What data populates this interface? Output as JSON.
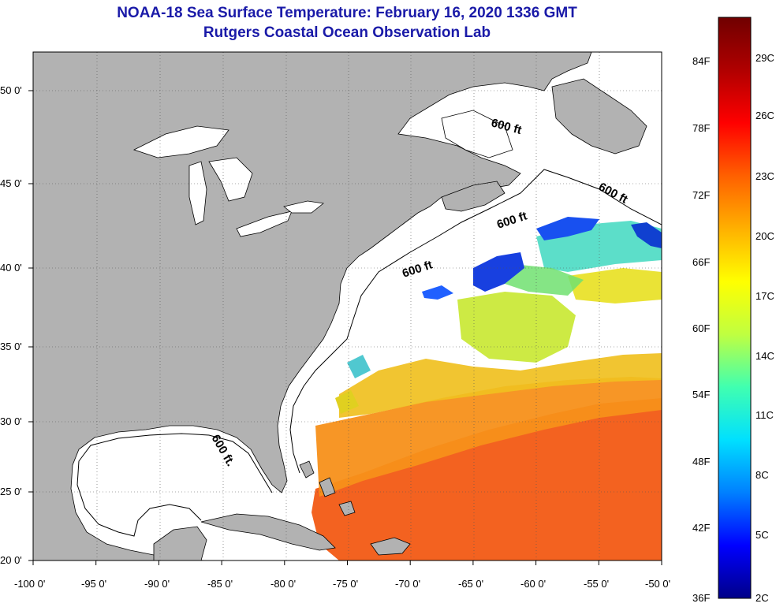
{
  "title": "NOAA-18 Sea Surface Temperature:  February 16, 2020 1336 GMT",
  "subtitle": "Rutgers Coastal Ocean Observation Lab",
  "lon_ticks": [
    "-100 0'",
    "-95 0'",
    "-90 0'",
    "-85 0'",
    "-80 0'",
    "-75 0'",
    "-70 0'",
    "-65 0'",
    "-60 0'",
    "-55 0'",
    "-50 0'"
  ],
  "lat_ticks": [
    "50 0'",
    "45 0'",
    "40 0'",
    "35 0'",
    "30 0'",
    "25 0'",
    "20 0'"
  ],
  "lat_values": [
    50,
    45,
    40,
    35,
    30,
    25,
    20
  ],
  "lon_values": [
    -100,
    -95,
    -90,
    -85,
    -80,
    -75,
    -70,
    -65,
    -60,
    -55,
    -50
  ],
  "colorbar": {
    "fahrenheit": [
      "84F",
      "78F",
      "72F",
      "66F",
      "60F",
      "54F",
      "48F",
      "42F",
      "36F"
    ],
    "celsius": [
      "29C",
      "26C",
      "23C",
      "20C",
      "17C",
      "14C",
      "11C",
      "8C",
      "5C",
      "2C"
    ],
    "colors": [
      "#000088",
      "#0000ff",
      "#0080ff",
      "#00e0ff",
      "#40ffb0",
      "#c0ff40",
      "#ffff00",
      "#ffb000",
      "#ff6000",
      "#ff0000",
      "#b00000",
      "#700000"
    ]
  },
  "contour_labels": [
    "600 ft",
    "600 ft",
    "600 ft",
    "600 ft",
    "600 ft."
  ],
  "colors": {
    "land": "#b2b2b2",
    "ocean": "#ffffff",
    "title": "#1a1aa8"
  }
}
